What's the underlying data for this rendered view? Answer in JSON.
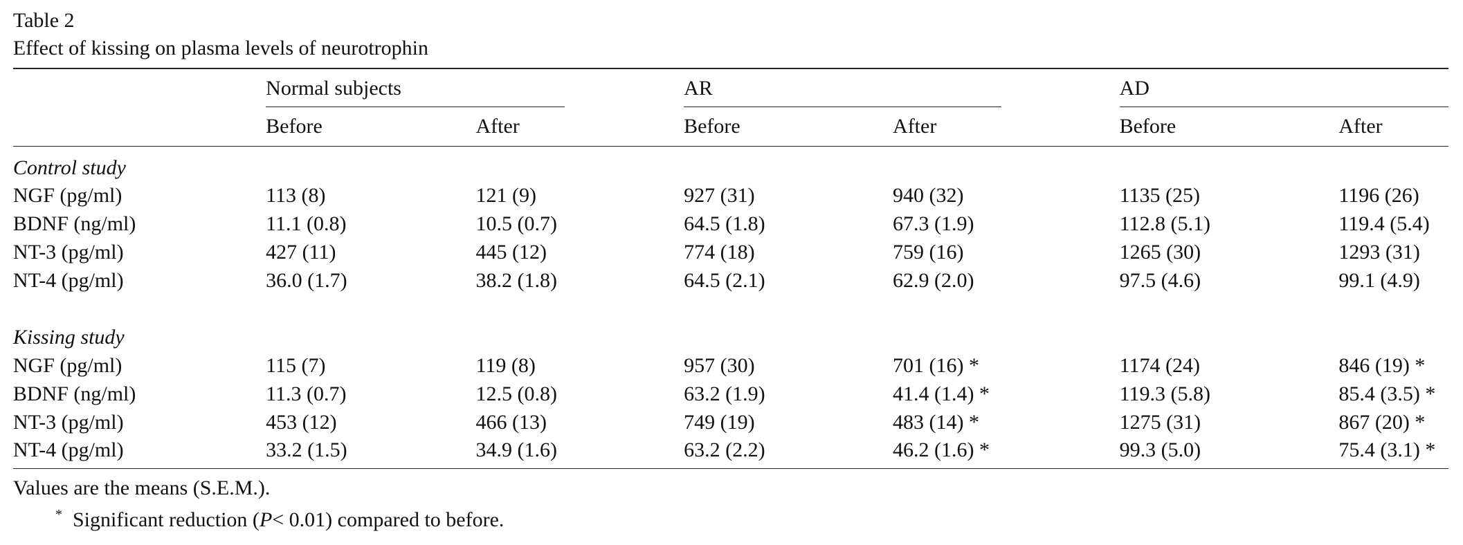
{
  "title": "Table 2",
  "caption": "Effect of kissing on plasma levels of neurotrophin",
  "table": {
    "groups": [
      "Normal subjects",
      "AR",
      "AD"
    ],
    "subheaders": [
      "Before",
      "After",
      "Before",
      "After",
      "Before",
      "After"
    ],
    "sections": [
      {
        "name": "Control study",
        "rows": [
          [
            "NGF (pg/ml)",
            "113 (8)",
            "121 (9)",
            "927 (31)",
            "940 (32)",
            "1135 (25)",
            "1196 (26)"
          ],
          [
            "BDNF (ng/ml)",
            "11.1 (0.8)",
            "10.5 (0.7)",
            "64.5 (1.8)",
            "67.3 (1.9)",
            "112.8 (5.1)",
            "119.4 (5.4)"
          ],
          [
            "NT-3 (pg/ml)",
            "427 (11)",
            "445 (12)",
            "774 (18)",
            "759 (16)",
            "1265 (30)",
            "1293 (31)"
          ],
          [
            "NT-4 (pg/ml)",
            "36.0 (1.7)",
            "38.2 (1.8)",
            "64.5 (2.1)",
            "62.9 (2.0)",
            "97.5 (4.6)",
            "99.1 (4.9)"
          ]
        ]
      },
      {
        "name": "Kissing study",
        "rows": [
          [
            "NGF (pg/ml)",
            "115 (7)",
            "119 (8)",
            "957 (30)",
            "701 (16) *",
            "1174 (24)",
            "846 (19) *"
          ],
          [
            "BDNF (ng/ml)",
            "11.3 (0.7)",
            "12.5 (0.8)",
            "63.2 (1.9)",
            "41.4 (1.4) *",
            "119.3 (5.8)",
            "85.4 (3.5) *"
          ],
          [
            "NT-3 (pg/ml)",
            "453 (12)",
            "466 (13)",
            "749 (19)",
            "483 (14) *",
            "1275 (31)",
            "867 (20) *"
          ],
          [
            "NT-4 (pg/ml)",
            "33.2 (1.5)",
            "34.9 (1.6)",
            "63.2 (2.2)",
            "46.2 (1.6) *",
            "99.3 (5.0)",
            "75.4 (3.1) *"
          ]
        ]
      }
    ]
  },
  "footnotes": {
    "note": "Values are the means (S.E.M.).",
    "marker": "*",
    "text_before": "Significant reduction (",
    "italic": "P",
    "text_after": "< 0.01) compared to before."
  }
}
